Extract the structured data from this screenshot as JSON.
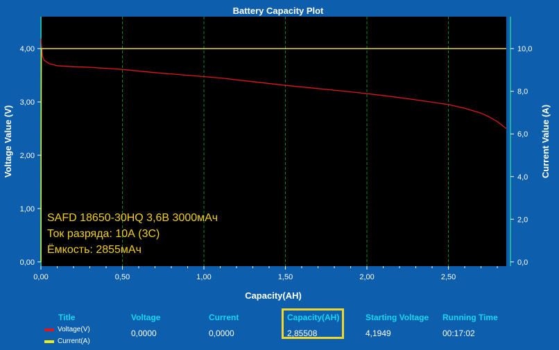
{
  "colors": {
    "background": "#0d5fad",
    "plot_bg": "#000000",
    "grid": "#0c8a26",
    "voltage_line": "#e0181e",
    "current_line": "#f4ec1a",
    "annotation": "#f2d01a",
    "header_text": "#16d6f0",
    "highlight_box": "#f2d72a"
  },
  "chart_data": {
    "type": "line",
    "title": "Battery Capacity Plot",
    "xlabel": "Capacity(AH)",
    "ylabel": "Voltage Value (V)",
    "y2label": "Current Value (A)",
    "xlim": [
      0,
      2.85508
    ],
    "ylim": [
      -0.08,
      4.6
    ],
    "y2lim": [
      -0.2,
      11.5
    ],
    "grid": true,
    "x_ticks": [
      "0,00",
      "0,50",
      "1,00",
      "1,50",
      "2,00",
      "2,50"
    ],
    "x_tick_values": [
      0,
      0.5,
      1.0,
      1.5,
      2.0,
      2.5
    ],
    "y_ticks": [
      "0,00",
      "1,00",
      "2,00",
      "3,00",
      "4,00"
    ],
    "y_tick_values": [
      0,
      1,
      2,
      3,
      4
    ],
    "y2_ticks": [
      "0,0",
      "2,0",
      "4,0",
      "6,0",
      "8,0",
      "10,0"
    ],
    "y2_tick_values": [
      0,
      2,
      4,
      6,
      8,
      10
    ],
    "series": [
      {
        "name": "Voltage(V)",
        "axis": "left",
        "x": [
          0,
          0.005,
          0.01,
          0.02,
          0.05,
          0.1,
          0.2,
          0.3,
          0.5,
          0.7,
          0.9,
          1.1,
          1.3,
          1.5,
          1.7,
          1.9,
          2.1,
          2.3,
          2.5,
          2.6,
          2.7,
          2.75,
          2.8,
          2.855
        ],
        "values": [
          4.19,
          4.0,
          3.85,
          3.78,
          3.72,
          3.68,
          3.66,
          3.65,
          3.61,
          3.55,
          3.5,
          3.45,
          3.38,
          3.31,
          3.25,
          3.19,
          3.12,
          3.04,
          2.95,
          2.88,
          2.79,
          2.72,
          2.63,
          2.5
        ]
      },
      {
        "name": "Current(A)",
        "axis": "right",
        "x": [
          0,
          0.003,
          2.855
        ],
        "values": [
          0,
          10.0,
          10.0
        ]
      }
    ],
    "annotations": [
      "SAFD 18650-30HQ 3,6В 3000мАч",
      "Ток разряда: 10А (3С)",
      "Ёмкость: 2855мАч"
    ]
  },
  "legend": {
    "title_header": "Title",
    "items": [
      "Voltage(V)",
      "Current(A)"
    ],
    "columns": [
      {
        "header": "Voltage",
        "value": "0,0000"
      },
      {
        "header": "Current",
        "value": "0,0000"
      },
      {
        "header": "Capacity(AH)",
        "value": "2,85508"
      },
      {
        "header": "Starting Voltage",
        "value": "4,1949"
      },
      {
        "header": "Running Time",
        "value": "00:17:02"
      }
    ]
  }
}
